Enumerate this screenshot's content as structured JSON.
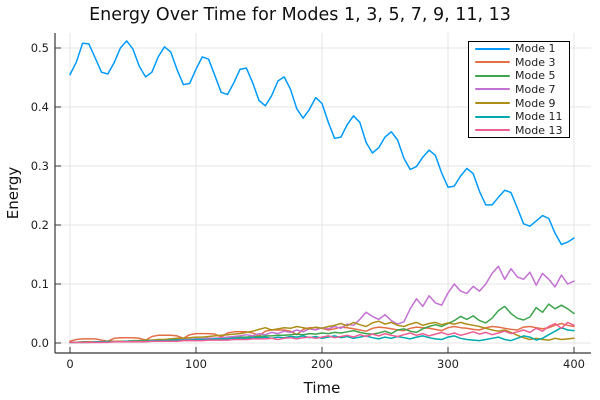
{
  "chart_data": {
    "type": "line",
    "title": "Energy Over Time for Modes 1, 3, 5, 7, 9, 11, 13",
    "xlabel": "Time",
    "ylabel": "Energy",
    "xlim": [
      -12,
      414
    ],
    "ylim": [
      -0.017,
      0.525
    ],
    "grid": true,
    "legend_position": "top-right",
    "xticks": [
      0,
      100,
      200,
      300,
      400
    ],
    "xtick_labels": [
      "0",
      "100",
      "200",
      "300",
      "400"
    ],
    "yticks": [
      0,
      0.1,
      0.2,
      0.3,
      0.4,
      0.5
    ],
    "ytick_labels": [
      "0.0",
      "0.1",
      "0.2",
      "0.3",
      "0.4",
      "0.5"
    ],
    "x_sampling": {
      "start": 0,
      "step": 5,
      "end": 400
    },
    "series": [
      {
        "name": "Mode 1",
        "color": "#009AFA",
        "values": [
          0.455,
          0.476,
          0.508,
          0.507,
          0.483,
          0.459,
          0.456,
          0.475,
          0.5,
          0.512,
          0.498,
          0.469,
          0.451,
          0.459,
          0.485,
          0.502,
          0.493,
          0.463,
          0.438,
          0.44,
          0.464,
          0.485,
          0.481,
          0.453,
          0.425,
          0.421,
          0.441,
          0.464,
          0.466,
          0.441,
          0.411,
          0.402,
          0.419,
          0.444,
          0.451,
          0.43,
          0.397,
          0.381,
          0.396,
          0.416,
          0.406,
          0.374,
          0.347,
          0.349,
          0.37,
          0.385,
          0.374,
          0.34,
          0.322,
          0.331,
          0.349,
          0.358,
          0.344,
          0.313,
          0.294,
          0.299,
          0.315,
          0.327,
          0.318,
          0.288,
          0.264,
          0.266,
          0.283,
          0.296,
          0.287,
          0.257,
          0.234,
          0.234,
          0.247,
          0.259,
          0.255,
          0.229,
          0.202,
          0.198,
          0.207,
          0.216,
          0.211,
          0.186,
          0.167,
          0.171,
          0.178
        ]
      },
      {
        "name": "Mode 3",
        "color": "#E36F47",
        "values": [
          0.003,
          0.006,
          0.007,
          0.007,
          0.007,
          0.005,
          0.003,
          0.008,
          0.009,
          0.009,
          0.009,
          0.008,
          0.005,
          0.011,
          0.013,
          0.013,
          0.013,
          0.012,
          0.008,
          0.014,
          0.016,
          0.016,
          0.016,
          0.015,
          0.01,
          0.017,
          0.019,
          0.019,
          0.019,
          0.017,
          0.012,
          0.02,
          0.022,
          0.022,
          0.022,
          0.02,
          0.014,
          0.023,
          0.026,
          0.026,
          0.025,
          0.022,
          0.024,
          0.027,
          0.026,
          0.024,
          0.022,
          0.02,
          0.025,
          0.027,
          0.026,
          0.024,
          0.022,
          0.021,
          0.025,
          0.027,
          0.026,
          0.025,
          0.023,
          0.021,
          0.026,
          0.028,
          0.026,
          0.025,
          0.023,
          0.022,
          0.026,
          0.028,
          0.027,
          0.025,
          0.023,
          0.022,
          0.027,
          0.028,
          0.026,
          0.024,
          0.026,
          0.03,
          0.033,
          0.03,
          0.028
        ]
      },
      {
        "name": "Mode 5",
        "color": "#3EA44E",
        "values": [
          0.001,
          0.001,
          0.002,
          0.002,
          0.002,
          0.002,
          0.003,
          0.003,
          0.003,
          0.003,
          0.003,
          0.004,
          0.004,
          0.004,
          0.005,
          0.005,
          0.005,
          0.006,
          0.006,
          0.006,
          0.007,
          0.007,
          0.008,
          0.008,
          0.008,
          0.009,
          0.009,
          0.01,
          0.01,
          0.011,
          0.011,
          0.012,
          0.012,
          0.013,
          0.013,
          0.014,
          0.015,
          0.014,
          0.016,
          0.015,
          0.017,
          0.016,
          0.018,
          0.017,
          0.019,
          0.021,
          0.018,
          0.016,
          0.015,
          0.017,
          0.02,
          0.016,
          0.022,
          0.024,
          0.02,
          0.018,
          0.024,
          0.028,
          0.031,
          0.028,
          0.033,
          0.038,
          0.045,
          0.04,
          0.046,
          0.038,
          0.034,
          0.042,
          0.055,
          0.062,
          0.05,
          0.042,
          0.039,
          0.044,
          0.06,
          0.052,
          0.066,
          0.058,
          0.064,
          0.058,
          0.05
        ]
      },
      {
        "name": "Mode 7",
        "color": "#C371D2",
        "values": [
          0.001,
          0.001,
          0.001,
          0.001,
          0.001,
          0.001,
          0.002,
          0.002,
          0.002,
          0.002,
          0.002,
          0.003,
          0.003,
          0.003,
          0.004,
          0.004,
          0.005,
          0.005,
          0.006,
          0.006,
          0.007,
          0.007,
          0.008,
          0.008,
          0.009,
          0.01,
          0.011,
          0.012,
          0.014,
          0.012,
          0.016,
          0.014,
          0.018,
          0.016,
          0.02,
          0.018,
          0.022,
          0.019,
          0.024,
          0.022,
          0.026,
          0.024,
          0.028,
          0.025,
          0.032,
          0.03,
          0.04,
          0.052,
          0.045,
          0.04,
          0.048,
          0.038,
          0.032,
          0.036,
          0.058,
          0.075,
          0.062,
          0.08,
          0.068,
          0.064,
          0.085,
          0.1,
          0.088,
          0.084,
          0.096,
          0.088,
          0.1,
          0.118,
          0.13,
          0.108,
          0.126,
          0.112,
          0.108,
          0.12,
          0.098,
          0.118,
          0.108,
          0.095,
          0.115,
          0.1,
          0.105
        ]
      },
      {
        "name": "Mode 9",
        "color": "#AC8E18",
        "values": [
          0.001,
          0.001,
          0.001,
          0.002,
          0.002,
          0.002,
          0.002,
          0.003,
          0.003,
          0.003,
          0.004,
          0.004,
          0.005,
          0.005,
          0.006,
          0.006,
          0.007,
          0.008,
          0.008,
          0.009,
          0.01,
          0.01,
          0.011,
          0.012,
          0.013,
          0.014,
          0.015,
          0.016,
          0.018,
          0.02,
          0.023,
          0.026,
          0.022,
          0.024,
          0.026,
          0.025,
          0.028,
          0.026,
          0.024,
          0.027,
          0.025,
          0.028,
          0.03,
          0.033,
          0.029,
          0.035,
          0.031,
          0.028,
          0.034,
          0.037,
          0.032,
          0.035,
          0.03,
          0.028,
          0.032,
          0.035,
          0.03,
          0.033,
          0.035,
          0.031,
          0.034,
          0.032,
          0.035,
          0.032,
          0.03,
          0.028,
          0.025,
          0.022,
          0.02,
          0.022,
          0.018,
          0.013,
          0.009,
          0.006,
          0.008,
          0.006,
          0.005,
          0.008,
          0.006,
          0.007,
          0.008
        ]
      },
      {
        "name": "Mode 11",
        "color": "#00AAAE",
        "values": [
          0.001,
          0.001,
          0.001,
          0.001,
          0.002,
          0.002,
          0.002,
          0.002,
          0.002,
          0.003,
          0.003,
          0.003,
          0.003,
          0.004,
          0.004,
          0.004,
          0.005,
          0.005,
          0.005,
          0.005,
          0.006,
          0.006,
          0.006,
          0.007,
          0.007,
          0.007,
          0.008,
          0.008,
          0.008,
          0.009,
          0.009,
          0.01,
          0.008,
          0.01,
          0.009,
          0.011,
          0.01,
          0.012,
          0.009,
          0.011,
          0.008,
          0.01,
          0.012,
          0.009,
          0.011,
          0.008,
          0.01,
          0.012,
          0.009,
          0.007,
          0.01,
          0.008,
          0.011,
          0.009,
          0.007,
          0.01,
          0.012,
          0.009,
          0.007,
          0.006,
          0.01,
          0.012,
          0.008,
          0.006,
          0.005,
          0.004,
          0.006,
          0.008,
          0.01,
          0.006,
          0.004,
          0.008,
          0.012,
          0.01,
          0.005,
          0.008,
          0.014,
          0.02,
          0.026,
          0.022,
          0.021
        ]
      },
      {
        "name": "Mode 13",
        "color": "#ED5E92",
        "values": [
          0.001,
          0.001,
          0.001,
          0.001,
          0.001,
          0.001,
          0.001,
          0.002,
          0.002,
          0.002,
          0.002,
          0.002,
          0.002,
          0.003,
          0.003,
          0.003,
          0.003,
          0.003,
          0.004,
          0.004,
          0.004,
          0.004,
          0.005,
          0.005,
          0.005,
          0.005,
          0.006,
          0.006,
          0.006,
          0.007,
          0.007,
          0.007,
          0.008,
          0.006,
          0.008,
          0.009,
          0.007,
          0.009,
          0.01,
          0.008,
          0.01,
          0.012,
          0.009,
          0.011,
          0.013,
          0.01,
          0.014,
          0.011,
          0.015,
          0.012,
          0.016,
          0.013,
          0.011,
          0.014,
          0.017,
          0.013,
          0.016,
          0.012,
          0.015,
          0.018,
          0.014,
          0.017,
          0.013,
          0.016,
          0.019,
          0.015,
          0.018,
          0.014,
          0.017,
          0.02,
          0.016,
          0.019,
          0.022,
          0.018,
          0.025,
          0.02,
          0.028,
          0.033,
          0.025,
          0.035,
          0.03
        ]
      }
    ]
  },
  "style": {
    "grid_color": "#E4E4E4",
    "spine_color": "#363636",
    "background": "#FFFFFF",
    "legend_border": "#000000"
  }
}
